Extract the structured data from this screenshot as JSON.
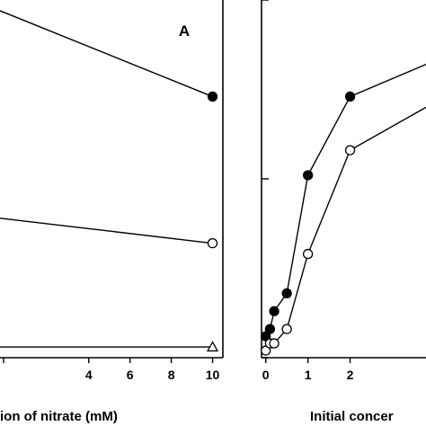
{
  "chart_data": [
    {
      "type": "line",
      "panel_label": "A",
      "xlabel": "ion of nitrate (mM)",
      "xlim": [
        -0.3,
        10.5
      ],
      "ylim": [
        0,
        10
      ],
      "xticks": [
        4,
        6,
        8,
        10
      ],
      "grid": false,
      "series": [
        {
          "marker": "filled-circle",
          "x": [
            -0.3,
            10
          ],
          "y": [
            9.7,
            7.3
          ]
        },
        {
          "marker": "open-circle",
          "x": [
            -0.3,
            10
          ],
          "y": [
            3.9,
            3.2
          ]
        },
        {
          "marker": "open-triangle",
          "x": [
            -0.3,
            10
          ],
          "y": [
            0.3,
            0.3
          ]
        }
      ]
    },
    {
      "type": "line",
      "xlabel": "Initial concer",
      "xlim": [
        -0.1,
        3.8
      ],
      "ylim": [
        0,
        10
      ],
      "xticks": [
        0,
        1,
        2
      ],
      "yticks": [
        0,
        5,
        10
      ],
      "grid": false,
      "series": [
        {
          "marker": "filled-circle",
          "x": [
            0,
            0.1,
            0.2,
            0.5,
            1,
            2,
            3.8
          ],
          "y": [
            0.6,
            0.8,
            1.3,
            1.8,
            5.1,
            7.3,
            8.2
          ]
        },
        {
          "marker": "open-circle",
          "x": [
            0,
            0.1,
            0.2,
            0.5,
            1,
            2,
            3.8
          ],
          "y": [
            0.2,
            0.4,
            0.4,
            0.8,
            2.9,
            5.8,
            7.0
          ]
        }
      ]
    }
  ]
}
